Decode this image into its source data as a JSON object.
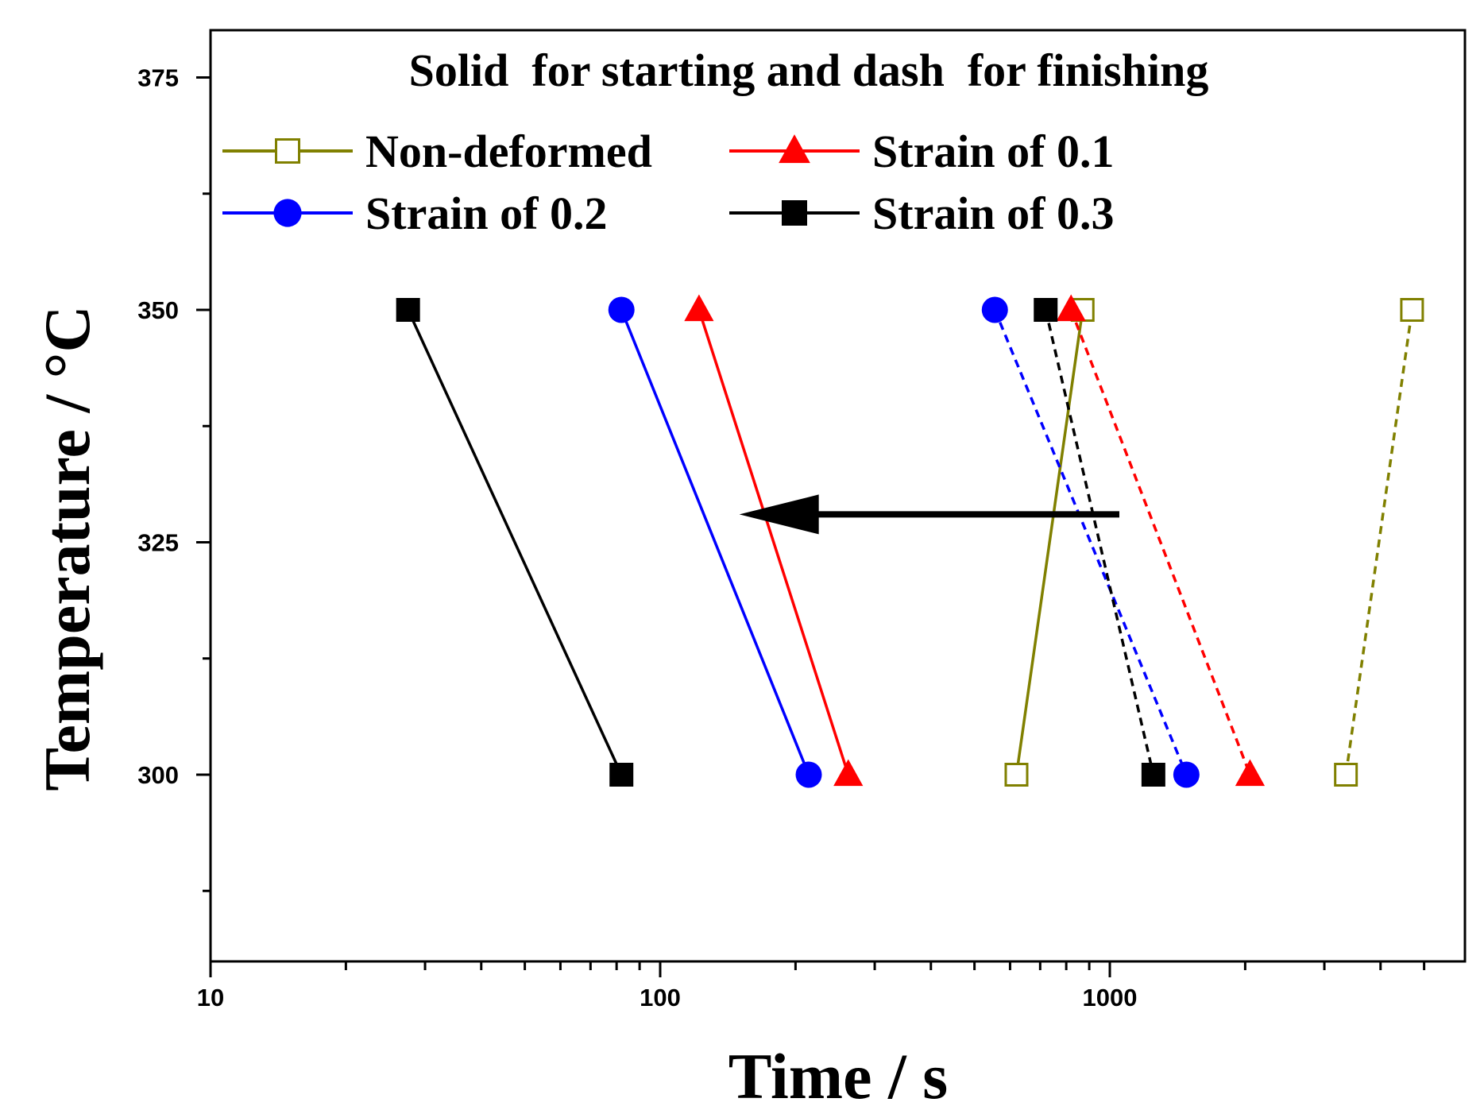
{
  "chart_data": {
    "type": "line",
    "title": "Solid  for starting and dash  for finishing",
    "xlabel": "Time / s",
    "ylabel": "Temperature / °C",
    "xscale": "log",
    "xlim": [
      10,
      5800
    ],
    "ylim": [
      280,
      380
    ],
    "x_ticks": [
      10,
      100,
      1000
    ],
    "x_tick_labels": [
      "10",
      "100",
      "1000"
    ],
    "y_ticks": [
      300,
      325,
      350,
      375
    ],
    "y_tick_labels": [
      "300",
      "325",
      "350",
      "375"
    ],
    "legend_position": "top",
    "series": [
      {
        "name": "Non-deformed",
        "color": "#808000",
        "marker": "square-open",
        "start": {
          "x": [
            620,
            870
          ],
          "y": [
            300,
            350
          ]
        },
        "finish": {
          "x": [
            3350,
            4700
          ],
          "y": [
            300,
            350
          ]
        }
      },
      {
        "name": "Strain of 0.1",
        "color": "#ff0000",
        "marker": "triangle",
        "start": {
          "x": [
            122,
            262
          ],
          "y": [
            350,
            300
          ]
        },
        "finish": {
          "x": [
            820,
            2050
          ],
          "y": [
            350,
            300
          ]
        }
      },
      {
        "name": "Strain of 0.2",
        "color": "#0000ff",
        "marker": "circle",
        "start": {
          "x": [
            82,
            214
          ],
          "y": [
            350,
            300
          ]
        },
        "finish": {
          "x": [
            555,
            1480
          ],
          "y": [
            350,
            300
          ]
        }
      },
      {
        "name": "Strain of 0.3",
        "color": "#000000",
        "marker": "square",
        "start": {
          "x": [
            27.5,
            82
          ],
          "y": [
            350,
            300
          ]
        },
        "finish": {
          "x": [
            720,
            1250
          ],
          "y": [
            350,
            300
          ]
        }
      }
    ],
    "annotations": [
      {
        "type": "arrow",
        "direction": "left",
        "from": {
          "x": 1050,
          "y": 328
        },
        "to": {
          "x": 150,
          "y": 328
        }
      }
    ]
  }
}
